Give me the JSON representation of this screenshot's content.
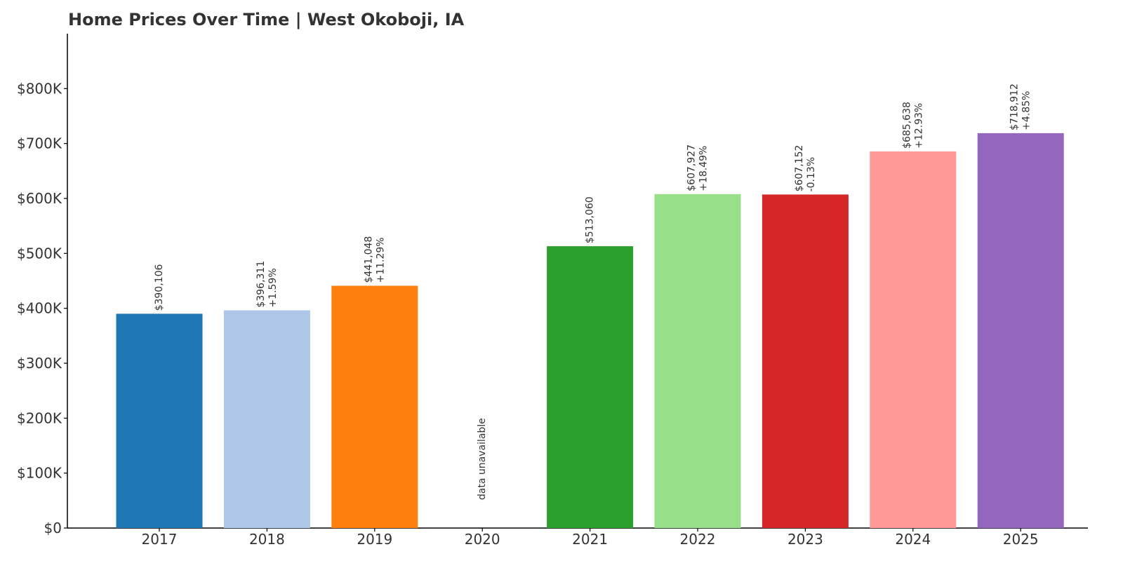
{
  "chart_data": {
    "type": "bar",
    "title": "Home Prices Over Time | West Okoboji, IA",
    "xlabel": "",
    "ylabel": "",
    "ylim": [
      0,
      900000
    ],
    "yticks": [
      {
        "value": 0,
        "label": "$0"
      },
      {
        "value": 100000,
        "label": "$100K"
      },
      {
        "value": 200000,
        "label": "$200K"
      },
      {
        "value": 300000,
        "label": "$300K"
      },
      {
        "value": 400000,
        "label": "$400K"
      },
      {
        "value": 500000,
        "label": "$500K"
      },
      {
        "value": 600000,
        "label": "$600K"
      },
      {
        "value": 700000,
        "label": "$700K"
      },
      {
        "value": 800000,
        "label": "$800K"
      }
    ],
    "grid": false,
    "categories": [
      "2017",
      "2018",
      "2019",
      "2020",
      "2021",
      "2022",
      "2023",
      "2024",
      "2025"
    ],
    "values": [
      390106,
      396311,
      441048,
      null,
      513060,
      607927,
      607152,
      685638,
      718912
    ],
    "value_labels": [
      "$390,106",
      "$396,311",
      "$441,048",
      "",
      "$513,060",
      "$607,927",
      "$607,152",
      "$685,638",
      "$718,912"
    ],
    "change_labels": [
      "",
      "+1.59%",
      "+11.29%",
      "",
      "",
      "+18.49%",
      "-0.13%",
      "+12.93%",
      "+4.85%"
    ],
    "missing_label": "data unavailable",
    "colors": [
      "#1f77b4",
      "#aec7e8",
      "#ff7f0e",
      "#ffbb78",
      "#2ca02c",
      "#98df8a",
      "#d62728",
      "#ff9896",
      "#9467bd"
    ],
    "axis_color": "#000000",
    "text_color": "#333333"
  }
}
